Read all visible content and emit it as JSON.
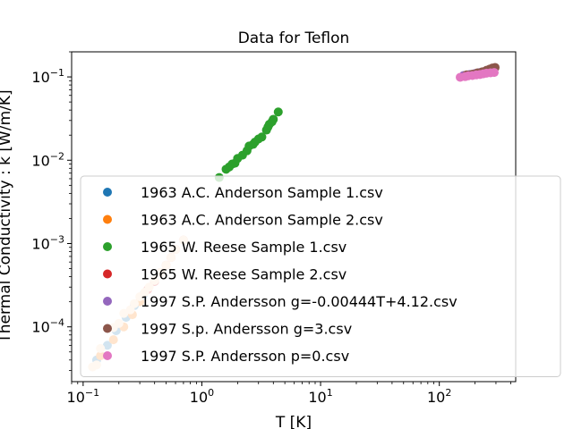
{
  "chart_data": {
    "type": "scatter",
    "title": "Data for Teflon",
    "xlabel": "T [K]",
    "ylabel": "Thermal Conductivity : k [W/m/K]",
    "xscale": "log",
    "yscale": "log",
    "xlim": [
      0.08,
      440
    ],
    "ylim": [
      2.2e-05,
      0.2
    ],
    "xticks": [
      {
        "value": 0.1,
        "base": "10",
        "exp": "−1"
      },
      {
        "value": 1,
        "base": "10",
        "exp": "0"
      },
      {
        "value": 10,
        "base": "10",
        "exp": "1"
      },
      {
        "value": 100,
        "base": "10",
        "exp": "2"
      }
    ],
    "yticks": [
      {
        "value": 0.0001,
        "base": "10",
        "exp": "−4"
      },
      {
        "value": 0.001,
        "base": "10",
        "exp": "−3"
      },
      {
        "value": 0.01,
        "base": "10",
        "exp": "−2"
      },
      {
        "value": 0.1,
        "base": "10",
        "exp": "−1"
      }
    ],
    "grid": false,
    "legend_placement": "lower-right",
    "series": [
      {
        "name": "1963 A.C. Anderson Sample 1.csv",
        "color": "#1f77b4",
        "x": [
          0.13,
          0.16,
          0.19,
          0.23,
          0.27,
          0.32
        ],
        "y": [
          4e-05,
          6e-05,
          9e-05,
          0.00013,
          0.00018,
          0.00024
        ]
      },
      {
        "name": "1963 A.C. Anderson Sample 2.csv",
        "color": "#ff7f0e",
        "x": [
          0.14,
          0.18,
          0.22,
          0.26,
          0.3
        ],
        "y": [
          4.5e-05,
          7e-05,
          0.0001,
          0.00014,
          0.0002
        ]
      },
      {
        "name": "1965 W. Reese Sample 1.csv",
        "color": "#2ca02c",
        "x": [
          1.4,
          1.6,
          1.7,
          1.8,
          1.9,
          2.0,
          2.2,
          2.4,
          2.5,
          2.7,
          2.8,
          3.0,
          3.2,
          3.5,
          3.6,
          3.7,
          3.9,
          4.0,
          4.4
        ],
        "y": [
          0.0062,
          0.0078,
          0.0083,
          0.009,
          0.0092,
          0.0105,
          0.0115,
          0.013,
          0.0148,
          0.0155,
          0.0165,
          0.018,
          0.019,
          0.023,
          0.025,
          0.027,
          0.029,
          0.031,
          0.038
        ]
      },
      {
        "name": "1965 W. Reese Sample 2.csv",
        "color": "#d62728",
        "x": [
          0.35,
          0.4,
          0.45,
          0.5,
          0.55,
          0.6,
          0.7
        ],
        "y": [
          0.00028,
          0.00035,
          0.00045,
          0.00055,
          0.00068,
          0.00085,
          0.0011
        ]
      },
      {
        "name": "1997 S.P. Andersson g=-0.00444T+4.12.csv",
        "color": "#9467bd",
        "x": [
          160,
          180,
          200,
          220,
          240,
          260,
          280
        ],
        "y": [
          0.104,
          0.107,
          0.11,
          0.113,
          0.116,
          0.119,
          0.122
        ]
      },
      {
        "name": "1997 S.p. Andersson g=3.csv",
        "color": "#8c564b",
        "x": [
          170,
          190,
          210,
          230,
          250,
          265,
          280,
          295
        ],
        "y": [
          0.106,
          0.108,
          0.112,
          0.115,
          0.12,
          0.124,
          0.128,
          0.13
        ]
      },
      {
        "name": "1997 S.P. Andersson p=0.csv",
        "color": "#e377c2",
        "x": [
          150,
          165,
          175,
          190,
          205,
          220,
          235,
          250,
          270,
          290
        ],
        "y": [
          0.099,
          0.101,
          0.103,
          0.104,
          0.106,
          0.107,
          0.109,
          0.111,
          0.112,
          0.113
        ]
      },
      {
        "name": "",
        "color": "#ffdab9",
        "x": [
          0.12,
          0.13,
          0.14,
          0.18,
          0.2,
          0.22,
          0.25,
          0.27,
          0.3,
          0.33,
          0.36,
          0.4,
          0.45,
          0.5,
          0.55,
          0.6,
          0.7
        ],
        "y": [
          3.3e-05,
          3.5e-05,
          5.5e-05,
          9.8e-05,
          0.00011,
          0.000145,
          0.00016,
          0.00019,
          0.00023,
          0.00026,
          0.0003,
          0.00036,
          0.00045,
          0.00055,
          0.00068,
          0.00085,
          0.0011
        ]
      }
    ],
    "legend_entries": [
      0,
      1,
      2,
      3,
      4,
      5,
      6
    ]
  }
}
